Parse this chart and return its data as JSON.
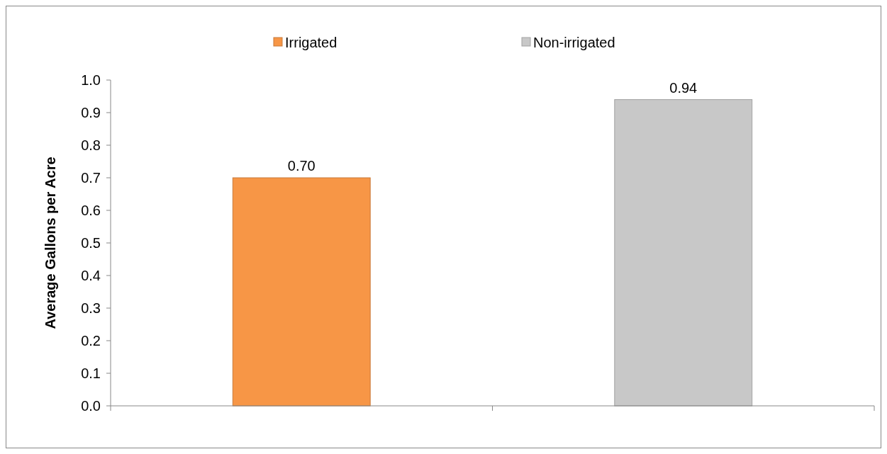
{
  "chart_data": {
    "type": "bar",
    "ylabel": "Average Gallons per Acre",
    "categories": [
      null,
      null
    ],
    "series": [
      {
        "name": "Irrigated",
        "color": "#f79646",
        "values": [
          0.7,
          null
        ],
        "value_labels": [
          "0.70",
          null
        ]
      },
      {
        "name": "Non-irrigated",
        "color": "#c8c8c8",
        "values": [
          null,
          0.94
        ],
        "value_labels": [
          null,
          "0.94"
        ]
      }
    ],
    "ylim": [
      0,
      1
    ],
    "yticks": [
      {
        "value": 0,
        "label": "0.0"
      },
      {
        "value": 0.1,
        "label": "0.1"
      },
      {
        "value": 0.2,
        "label": "0.2"
      },
      {
        "value": 0.3,
        "label": "0.3"
      },
      {
        "value": 0.4,
        "label": "0.4"
      },
      {
        "value": 0.5,
        "label": "0.5"
      },
      {
        "value": 0.6,
        "label": "0.6"
      },
      {
        "value": 0.7,
        "label": "0.7"
      },
      {
        "value": 0.8,
        "label": "0.8"
      },
      {
        "value": 0.9,
        "label": "0.9"
      },
      {
        "value": 1,
        "label": "1.0"
      }
    ],
    "legend": "top",
    "grid": false
  }
}
